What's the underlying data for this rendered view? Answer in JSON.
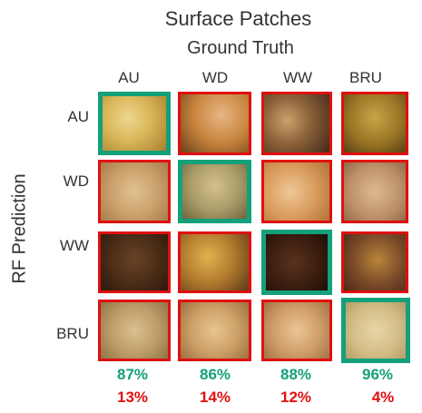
{
  "title": "Surface Patches",
  "subtitle": "Ground Truth",
  "y_axis_label": "RF  Prediction",
  "columns": [
    "AU",
    "WD",
    "WW",
    "BRU"
  ],
  "rows": [
    "AU",
    "WD",
    "WW",
    "BRU"
  ],
  "correct_color": "#13a07a",
  "wrong_color": "#e01010",
  "accuracy": [
    "87%",
    "86%",
    "88%",
    "96%"
  ],
  "error": [
    "13%",
    "14%",
    "12%",
    "4%"
  ]
}
